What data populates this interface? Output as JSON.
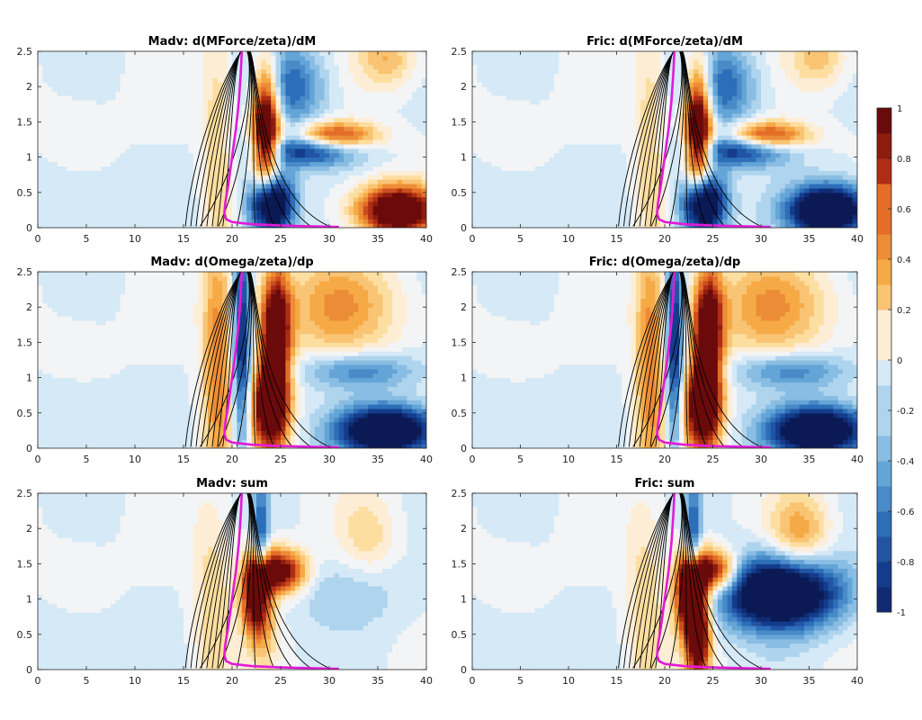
{
  "chart_data": {
    "type": "heatmap",
    "panels": [
      {
        "title": "Madv: d(MForce/zeta)/dM",
        "variant": "madv_dM"
      },
      {
        "title": "Fric: d(MForce/zeta)/dM",
        "variant": "fric_dM"
      },
      {
        "title": "Madv: d(Omega/zeta)/dp",
        "variant": "madv_dp"
      },
      {
        "title": "Fric: d(Omega/zeta)/dp",
        "variant": "fric_dp"
      },
      {
        "title": "Madv: sum",
        "variant": "madv_sum"
      },
      {
        "title": "Fric: sum",
        "variant": "fric_sum"
      }
    ],
    "xlim": [
      0,
      40
    ],
    "ylim": [
      0,
      2.5
    ],
    "x_ticks": [
      "0",
      "5",
      "10",
      "15",
      "20",
      "25",
      "30",
      "35",
      "40"
    ],
    "y_ticks": [
      "0",
      "0.5",
      "1",
      "1.5",
      "2",
      "2.5"
    ],
    "colorbar": {
      "range": [
        -1,
        1
      ],
      "ticks": [
        "-1",
        "-0.8",
        "-0.6",
        "-0.4",
        "-0.2",
        "0",
        "0.2",
        "0.4",
        "0.6",
        "0.8",
        "1"
      ],
      "colormap": "blue-white-red",
      "low_color": "#0b1a55",
      "high_color": "#6b0a0a"
    },
    "overlay": {
      "contours_color": "#000000",
      "curve_color": "#e31ad8"
    }
  }
}
